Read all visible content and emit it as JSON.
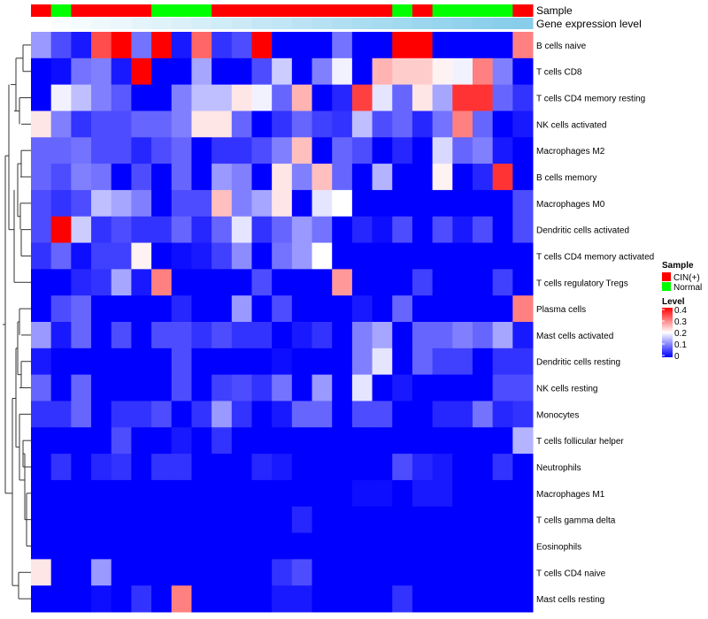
{
  "chart_data": {
    "type": "heatmap",
    "annotations": {
      "sample_label": "Sample",
      "expression_label": "Gene expression level"
    },
    "columns": [
      {
        "sample": "CIN(+)",
        "expression": 0.0
      },
      {
        "sample": "Normal",
        "expression": 0.04
      },
      {
        "sample": "CIN(+)",
        "expression": 0.09
      },
      {
        "sample": "CIN(+)",
        "expression": 0.13
      },
      {
        "sample": "CIN(+)",
        "expression": 0.17
      },
      {
        "sample": "CIN(+)",
        "expression": 0.22
      },
      {
        "sample": "Normal",
        "expression": 0.26
      },
      {
        "sample": "Normal",
        "expression": 0.3
      },
      {
        "sample": "Normal",
        "expression": 0.35
      },
      {
        "sample": "CIN(+)",
        "expression": 0.39
      },
      {
        "sample": "CIN(+)",
        "expression": 0.43
      },
      {
        "sample": "CIN(+)",
        "expression": 0.48
      },
      {
        "sample": "CIN(+)",
        "expression": 0.52
      },
      {
        "sample": "CIN(+)",
        "expression": 0.57
      },
      {
        "sample": "CIN(+)",
        "expression": 0.61
      },
      {
        "sample": "CIN(+)",
        "expression": 0.65
      },
      {
        "sample": "CIN(+)",
        "expression": 0.7
      },
      {
        "sample": "CIN(+)",
        "expression": 0.74
      },
      {
        "sample": "Normal",
        "expression": 0.78
      },
      {
        "sample": "CIN(+)",
        "expression": 0.83
      },
      {
        "sample": "Normal",
        "expression": 0.87
      },
      {
        "sample": "Normal",
        "expression": 0.91
      },
      {
        "sample": "Normal",
        "expression": 0.96
      },
      {
        "sample": "Normal",
        "expression": 0.98
      },
      {
        "sample": "CIN(+)",
        "expression": 0.99
      }
    ],
    "rows": [
      "B cells naive",
      "T cells CD8",
      "T cells CD4 memory resting",
      "NK cells activated",
      "Macrophages M2",
      "B cells memory",
      "Macrophages M0",
      "Dendritic cells activated",
      "T cells CD4 memory activated",
      "T cells regulatory  Tregs",
      "Plasma cells",
      "Mast cells activated",
      "Dendritic cells resting",
      "NK cells resting",
      "Monocytes",
      "T cells follicular helper",
      "Neutrophils",
      "Macrophages M1",
      "T cells gamma delta",
      "Eosinophils",
      "T cells CD4 naive",
      "Mast cells resting"
    ],
    "values": [
      [
        0.12,
        0.06,
        0.02,
        0.34,
        0.4,
        0.09,
        0.4,
        0.02,
        0.32,
        0.04,
        0.06,
        0.4,
        0.0,
        0.0,
        0.0,
        0.09,
        0.0,
        0.0,
        0.4,
        0.4,
        0.0,
        0.0,
        0.0,
        0.0,
        0.3
      ],
      [
        0.0,
        0.01,
        0.09,
        0.1,
        0.02,
        0.4,
        0.0,
        0.0,
        0.13,
        0.0,
        0.0,
        0.06,
        0.16,
        0.0,
        0.1,
        0.19,
        0.0,
        0.26,
        0.24,
        0.24,
        0.21,
        0.19,
        0.3,
        0.1,
        0.0
      ],
      [
        0.0,
        0.19,
        0.15,
        0.1,
        0.07,
        0.0,
        0.0,
        0.1,
        0.15,
        0.15,
        0.22,
        0.19,
        0.08,
        0.26,
        0.0,
        0.03,
        0.35,
        0.18,
        0.08,
        0.22,
        0.13,
        0.36,
        0.36,
        0.08,
        0.04
      ],
      [
        0.22,
        0.1,
        0.04,
        0.06,
        0.06,
        0.08,
        0.08,
        0.1,
        0.22,
        0.22,
        0.08,
        0.0,
        0.04,
        0.08,
        0.05,
        0.04,
        0.15,
        0.06,
        0.08,
        0.03,
        0.09,
        0.3,
        0.08,
        0.0,
        0.02
      ],
      [
        0.08,
        0.08,
        0.09,
        0.06,
        0.06,
        0.03,
        0.06,
        0.08,
        0.0,
        0.04,
        0.04,
        0.06,
        0.1,
        0.25,
        0.0,
        0.08,
        0.06,
        0.0,
        0.03,
        0.0,
        0.17,
        0.08,
        0.1,
        0.02,
        0.0
      ],
      [
        0.08,
        0.06,
        0.1,
        0.09,
        0.0,
        0.06,
        0.0,
        0.08,
        0.0,
        0.12,
        0.1,
        0.0,
        0.22,
        0.1,
        0.25,
        0.08,
        0.0,
        0.14,
        0.0,
        0.0,
        0.21,
        0.0,
        0.03,
        0.36,
        0.0
      ],
      [
        0.06,
        0.04,
        0.06,
        0.15,
        0.13,
        0.1,
        0.0,
        0.06,
        0.06,
        0.25,
        0.1,
        0.13,
        0.22,
        0.0,
        0.18,
        0.2,
        0.0,
        0.0,
        0.0,
        0.0,
        0.0,
        0.0,
        0.0,
        0.0,
        0.06
      ],
      [
        0.06,
        0.4,
        0.16,
        0.04,
        0.06,
        0.04,
        0.04,
        0.08,
        0.03,
        0.08,
        0.18,
        0.04,
        0.08,
        0.12,
        0.09,
        0.0,
        0.03,
        0.01,
        0.06,
        0.0,
        0.06,
        0.02,
        0.06,
        0.0,
        0.06
      ],
      [
        0.04,
        0.08,
        0.01,
        0.05,
        0.05,
        0.21,
        0.0,
        0.01,
        0.02,
        0.05,
        0.11,
        0.0,
        0.09,
        0.12,
        0.2,
        0.0,
        0.0,
        0.0,
        0.0,
        0.0,
        0.0,
        0.0,
        0.0,
        0.0,
        0.0
      ],
      [
        0.0,
        0.0,
        0.03,
        0.04,
        0.13,
        0.02,
        0.3,
        0.0,
        0.0,
        0.0,
        0.0,
        0.06,
        0.0,
        0.0,
        0.0,
        0.28,
        0.0,
        0.0,
        0.0,
        0.05,
        0.0,
        0.0,
        0.0,
        0.05,
        0.0
      ],
      [
        0.0,
        0.06,
        0.08,
        0.0,
        0.0,
        0.0,
        0.0,
        0.03,
        0.0,
        0.0,
        0.12,
        0.0,
        0.06,
        0.0,
        0.0,
        0.0,
        0.02,
        0.0,
        0.08,
        0.0,
        0.0,
        0.0,
        0.0,
        0.0,
        0.3
      ],
      [
        0.12,
        0.02,
        0.08,
        0.0,
        0.06,
        0.0,
        0.06,
        0.06,
        0.04,
        0.06,
        0.04,
        0.04,
        0.0,
        0.02,
        0.04,
        0.0,
        0.1,
        0.13,
        0.0,
        0.08,
        0.08,
        0.1,
        0.08,
        0.13,
        0.02
      ],
      [
        0.02,
        0.0,
        0.0,
        0.0,
        0.0,
        0.0,
        0.0,
        0.06,
        0.0,
        0.0,
        0.0,
        0.0,
        0.01,
        0.0,
        0.0,
        0.0,
        0.1,
        0.18,
        0.0,
        0.08,
        0.05,
        0.05,
        0.0,
        0.04,
        0.04
      ],
      [
        0.08,
        0.0,
        0.08,
        0.0,
        0.0,
        0.0,
        0.0,
        0.06,
        0.0,
        0.05,
        0.06,
        0.04,
        0.09,
        0.0,
        0.12,
        0.0,
        0.18,
        0.0,
        0.02,
        0.0,
        0.0,
        0.0,
        0.0,
        0.06,
        0.06
      ],
      [
        0.04,
        0.04,
        0.08,
        0.0,
        0.04,
        0.04,
        0.06,
        0.0,
        0.04,
        0.12,
        0.04,
        0.0,
        0.02,
        0.08,
        0.08,
        0.0,
        0.06,
        0.06,
        0.0,
        0.0,
        0.03,
        0.03,
        0.09,
        0.03,
        0.04
      ],
      [
        0.0,
        0.0,
        0.0,
        0.0,
        0.06,
        0.0,
        0.0,
        0.02,
        0.0,
        0.04,
        0.0,
        0.0,
        0.0,
        0.0,
        0.0,
        0.0,
        0.0,
        0.0,
        0.0,
        0.0,
        0.0,
        0.0,
        0.0,
        0.0,
        0.14
      ],
      [
        0.0,
        0.04,
        0.0,
        0.03,
        0.04,
        0.0,
        0.04,
        0.04,
        0.0,
        0.0,
        0.0,
        0.03,
        0.02,
        0.0,
        0.0,
        0.0,
        0.0,
        0.0,
        0.06,
        0.03,
        0.02,
        0.0,
        0.0,
        0.04,
        0.0
      ],
      [
        0.0,
        0.0,
        0.0,
        0.0,
        0.0,
        0.0,
        0.0,
        0.0,
        0.0,
        0.0,
        0.0,
        0.0,
        0.0,
        0.0,
        0.0,
        0.0,
        0.01,
        0.01,
        0.0,
        0.02,
        0.02,
        0.0,
        0.0,
        0.0,
        0.0
      ],
      [
        0.0,
        0.0,
        0.0,
        0.0,
        0.0,
        0.0,
        0.0,
        0.0,
        0.0,
        0.0,
        0.0,
        0.0,
        0.0,
        0.03,
        0.0,
        0.0,
        0.0,
        0.0,
        0.0,
        0.0,
        0.0,
        0.0,
        0.0,
        0.0,
        0.0
      ],
      [
        0.0,
        0.0,
        0.0,
        0.0,
        0.0,
        0.0,
        0.0,
        0.0,
        0.0,
        0.0,
        0.0,
        0.0,
        0.0,
        0.0,
        0.0,
        0.0,
        0.0,
        0.0,
        0.0,
        0.0,
        0.0,
        0.0,
        0.0,
        0.0,
        0.0
      ],
      [
        0.22,
        0.0,
        0.0,
        0.12,
        0.0,
        0.0,
        0.0,
        0.0,
        0.0,
        0.0,
        0.0,
        0.0,
        0.04,
        0.06,
        0.0,
        0.0,
        0.0,
        0.0,
        0.0,
        0.0,
        0.0,
        0.0,
        0.0,
        0.0,
        0.0
      ],
      [
        0.0,
        0.0,
        0.0,
        0.01,
        0.0,
        0.04,
        0.0,
        0.3,
        0.0,
        0.0,
        0.0,
        0.0,
        0.02,
        0.02,
        0.0,
        0.0,
        0.0,
        0.0,
        0.04,
        0.0,
        0.0,
        0.0,
        0.0,
        0.0,
        0.0
      ]
    ],
    "color_scale": {
      "min": 0,
      "max": 0.4,
      "low": "#0000ff",
      "mid": "#ffffff",
      "high": "#ff0000",
      "mid_value": 0.2
    },
    "sample_colors": {
      "CIN(+)": "#ff0000",
      "Normal": "#00ff00"
    },
    "expression_colors": {
      "low": "#ffffff",
      "high": "#87ceeb"
    },
    "legend": {
      "sample_title": "Sample",
      "sample_items": [
        {
          "label": "CIN(+)",
          "color": "#ff0000"
        },
        {
          "label": "Normal",
          "color": "#00ff00"
        }
      ],
      "level_title": "Level",
      "level_ticks": [
        "0.4",
        "0.3",
        "0.2",
        "0.1",
        "0"
      ]
    },
    "dendrogram": "row clustering tree on left"
  }
}
